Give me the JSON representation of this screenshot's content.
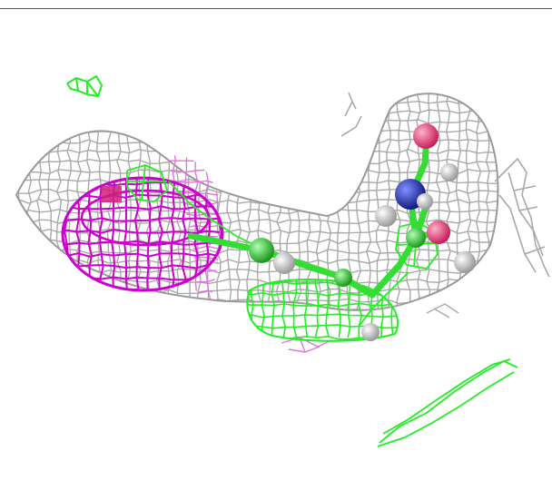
{
  "scene": {
    "background": "#ffffff",
    "colors": {
      "gray_mesh": "#a9a9a9",
      "magenta_mesh": "#cc00cc",
      "light_magenta_mesh": "#dd77dd",
      "green_mesh": "#22ee22",
      "atom_oxygen": "#e8407a",
      "atom_nitrogen": "#2233bb",
      "atom_hydrogen": "#dcdcdc",
      "bond_green": "#33dd33",
      "divider": "#555555"
    }
  }
}
